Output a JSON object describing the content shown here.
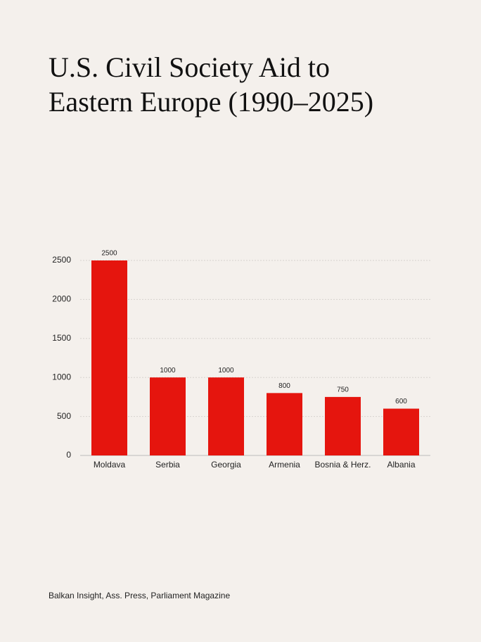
{
  "chart_data": {
    "type": "bar",
    "title": [
      "U.S. Civil Society Aid to",
      "Eastern Europe (1990–2025)"
    ],
    "source": "Balkan Insight, Ass. Press, Parliament Magazine",
    "categories": [
      "Moldava",
      "Serbia",
      "Georgia",
      "Armenia",
      "Bosnia & Herz.",
      "Albania"
    ],
    "values": [
      2500,
      1000,
      1000,
      800,
      750,
      600
    ],
    "color": "#e5150e",
    "ylim": [
      0,
      2500
    ],
    "yticks": [
      0,
      500,
      1000,
      1500,
      2000,
      2500
    ],
    "grid": true
  }
}
